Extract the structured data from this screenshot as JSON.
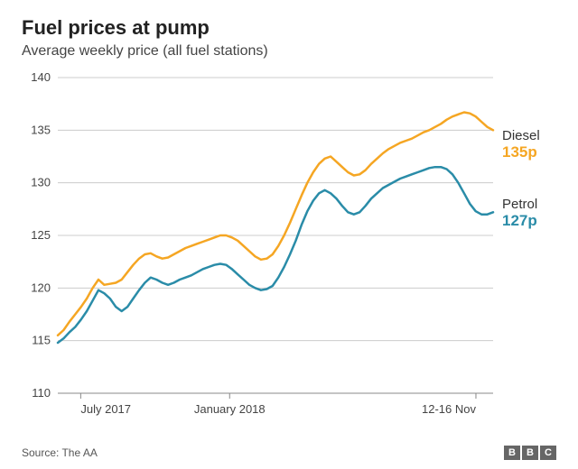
{
  "title": "Fuel prices at pump",
  "subtitle": "Average weekly price (all fuel stations)",
  "source_label": "Source: The AA",
  "brand_letters": [
    "B",
    "B",
    "C"
  ],
  "chart": {
    "type": "line",
    "background_color": "#ffffff",
    "grid_color": "#cccccc",
    "axis_color": "#888888",
    "tick_font_size": 13,
    "tick_color": "#444444",
    "ylim": [
      110,
      140
    ],
    "ytick_step": 5,
    "yticks": [
      110,
      115,
      120,
      125,
      130,
      135,
      140
    ],
    "x_range": [
      0,
      76
    ],
    "x_ticks": [
      {
        "pos": 4,
        "label": "July 2017"
      },
      {
        "pos": 30,
        "label": "January 2018"
      },
      {
        "pos": 73,
        "label": "12-16 Nov"
      }
    ],
    "series": [
      {
        "name": "Diesel",
        "end_value_label": "135p",
        "color": "#f5a623",
        "line_width": 2.5,
        "values": [
          115.5,
          116,
          116.8,
          117.5,
          118.2,
          119,
          120,
          120.8,
          120.3,
          120.4,
          120.5,
          120.8,
          121.5,
          122.2,
          122.8,
          123.2,
          123.3,
          123,
          122.8,
          122.9,
          123.2,
          123.5,
          123.8,
          124,
          124.2,
          124.4,
          124.6,
          124.8,
          125,
          125,
          124.8,
          124.5,
          124,
          123.5,
          123,
          122.7,
          122.8,
          123.2,
          124,
          125,
          126.2,
          127.5,
          128.8,
          130,
          131,
          131.8,
          132.3,
          132.5,
          132,
          131.5,
          131,
          130.7,
          130.8,
          131.2,
          131.8,
          132.3,
          132.8,
          133.2,
          133.5,
          133.8,
          134,
          134.2,
          134.5,
          134.8,
          135,
          135.3,
          135.6,
          136,
          136.3,
          136.5,
          136.7,
          136.6,
          136.3,
          135.8,
          135.3,
          135
        ],
        "end_label_x": 556,
        "end_label_y": 142
      },
      {
        "name": "Petrol",
        "end_value_label": "127p",
        "color": "#2a8ca8",
        "line_width": 2.5,
        "values": [
          114.8,
          115.2,
          115.8,
          116.3,
          117,
          117.8,
          118.8,
          119.8,
          119.5,
          119,
          118.2,
          117.8,
          118.2,
          119,
          119.8,
          120.5,
          121,
          120.8,
          120.5,
          120.3,
          120.5,
          120.8,
          121,
          121.2,
          121.5,
          121.8,
          122,
          122.2,
          122.3,
          122.2,
          121.8,
          121.3,
          120.8,
          120.3,
          120,
          119.8,
          119.9,
          120.2,
          121,
          122,
          123.2,
          124.5,
          126,
          127.3,
          128.3,
          129,
          129.3,
          129,
          128.5,
          127.8,
          127.2,
          127,
          127.2,
          127.8,
          128.5,
          129,
          129.5,
          129.8,
          130.1,
          130.4,
          130.6,
          130.8,
          131,
          131.2,
          131.4,
          131.5,
          131.5,
          131.3,
          130.8,
          130,
          129,
          128,
          127.3,
          127,
          127,
          127.2
        ],
        "end_label_x": 556,
        "end_label_y": 218
      }
    ]
  }
}
